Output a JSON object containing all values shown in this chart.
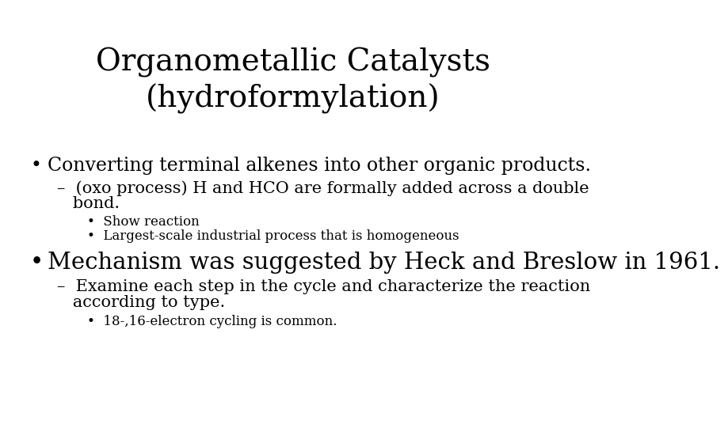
{
  "title_line1": "Organometallic Catalysts",
  "title_line2": "(hydroformylation)",
  "background_color": "#ffffff",
  "text_color": "#000000",
  "title_fontsize": 28,
  "bullet1_fontsize": 17,
  "sub1_fontsize": 15,
  "subsub_fontsize": 12,
  "bullet2_fontsize": 21,
  "sub2_fontsize": 15,
  "sub3_fontsize": 12,
  "bullet1": "Converting terminal alkenes into other organic products.",
  "sub1_line1": "–  (oxo process) H and HCO are formally added across a double",
  "sub1_line2": "   bond.",
  "subsub1": "•  Show reaction",
  "subsub2": "•  Largest-scale industrial process that is homogeneous",
  "bullet2": "Mechanism was suggested by Heck and Breslow in 1961.",
  "sub2_line1": "–  Examine each step in the cycle and characterize the reaction",
  "sub2_line2": "   according to type.",
  "subsub3": "•  18-,16-electron cycling is common.",
  "font_family": "DejaVu Serif"
}
